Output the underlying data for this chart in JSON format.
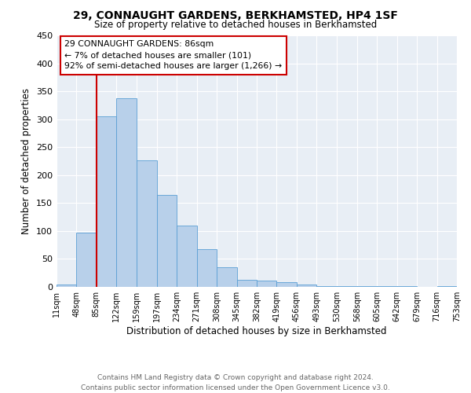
{
  "title": "29, CONNAUGHT GARDENS, BERKHAMSTED, HP4 1SF",
  "subtitle": "Size of property relative to detached houses in Berkhamsted",
  "xlabel": "Distribution of detached houses by size in Berkhamsted",
  "ylabel": "Number of detached properties",
  "bin_edges": [
    11,
    48,
    85,
    122,
    159,
    197,
    234,
    271,
    308,
    345,
    382,
    419,
    456,
    493,
    530,
    568,
    605,
    642,
    679,
    716,
    753
  ],
  "bin_labels": [
    "11sqm",
    "48sqm",
    "85sqm",
    "122sqm",
    "159sqm",
    "197sqm",
    "234sqm",
    "271sqm",
    "308sqm",
    "345sqm",
    "382sqm",
    "419sqm",
    "456sqm",
    "493sqm",
    "530sqm",
    "568sqm",
    "605sqm",
    "642sqm",
    "679sqm",
    "716sqm",
    "753sqm"
  ],
  "bar_heights": [
    4,
    97,
    305,
    338,
    226,
    164,
    109,
    68,
    35,
    13,
    11,
    8,
    4,
    2,
    2,
    1,
    1,
    1,
    0,
    2
  ],
  "bar_color": "#b8d0ea",
  "bar_edge_color": "#5a9fd4",
  "vline_x": 85,
  "vline_color": "#cc0000",
  "annotation_line1": "29 CONNAUGHT GARDENS: 86sqm",
  "annotation_line2": "← 7% of detached houses are smaller (101)",
  "annotation_line3": "92% of semi-detached houses are larger (1,266) →",
  "annotation_box_color": "#cc0000",
  "ylim": [
    0,
    450
  ],
  "yticks": [
    0,
    50,
    100,
    150,
    200,
    250,
    300,
    350,
    400,
    450
  ],
  "footer_line1": "Contains HM Land Registry data © Crown copyright and database right 2024.",
  "footer_line2": "Contains public sector information licensed under the Open Government Licence v3.0.",
  "plot_bg_color": "#e8eef5"
}
